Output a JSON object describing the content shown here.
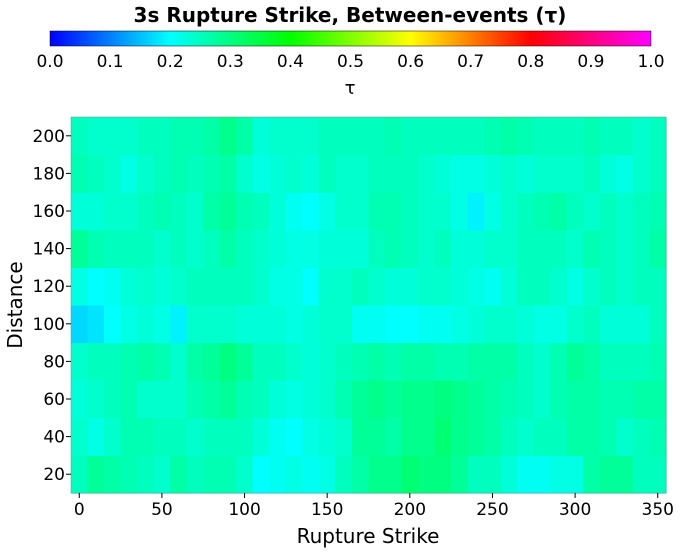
{
  "chart_data": {
    "type": "heatmap",
    "title": "3s Rupture Strike, Between-events (τ)",
    "xlabel": "Rupture Strike",
    "ylabel": "Distance",
    "colorbar": {
      "label": "τ",
      "min": 0.0,
      "max": 1.0,
      "ticks": [
        "0.0",
        "0.1",
        "0.2",
        "0.3",
        "0.4",
        "0.5",
        "0.6",
        "0.7",
        "0.8",
        "0.9",
        "1.0"
      ],
      "colors": [
        "#0000ff",
        "#00ffff",
        "#00ff00",
        "#ffff00",
        "#ff0000",
        "#ff00ff"
      ]
    },
    "x_range": [
      -5,
      355
    ],
    "y_range": [
      10,
      210
    ],
    "x_ticks": [
      "0",
      "50",
      "100",
      "150",
      "200",
      "250",
      "300",
      "350"
    ],
    "y_ticks": [
      "20",
      "40",
      "60",
      "80",
      "100",
      "120",
      "140",
      "160",
      "180",
      "200"
    ],
    "x_bin_centers": [
      0,
      10,
      20,
      30,
      40,
      50,
      60,
      70,
      80,
      90,
      100,
      110,
      120,
      130,
      140,
      150,
      160,
      170,
      180,
      190,
      200,
      210,
      220,
      230,
      240,
      250,
      260,
      270,
      280,
      290,
      300,
      310,
      320,
      330,
      340,
      350
    ],
    "y_bin_centers": [
      20,
      40,
      60,
      80,
      100,
      120,
      140,
      160,
      180,
      200
    ],
    "values": [
      [
        0.25,
        0.28,
        0.27,
        0.26,
        0.25,
        0.24,
        0.27,
        0.25,
        0.26,
        0.26,
        0.24,
        0.2,
        0.21,
        0.22,
        0.21,
        0.22,
        0.25,
        0.27,
        0.29,
        0.29,
        0.31,
        0.3,
        0.3,
        0.28,
        0.25,
        0.25,
        0.23,
        0.21,
        0.21,
        0.22,
        0.22,
        0.27,
        0.28,
        0.28,
        0.25,
        0.25
      ],
      [
        0.24,
        0.22,
        0.24,
        0.26,
        0.26,
        0.25,
        0.25,
        0.24,
        0.25,
        0.25,
        0.25,
        0.23,
        0.21,
        0.2,
        0.22,
        0.23,
        0.24,
        0.28,
        0.28,
        0.27,
        0.29,
        0.29,
        0.31,
        0.29,
        0.28,
        0.27,
        0.25,
        0.24,
        0.25,
        0.25,
        0.27,
        0.27,
        0.26,
        0.24,
        0.25,
        0.26
      ],
      [
        0.23,
        0.24,
        0.25,
        0.26,
        0.24,
        0.24,
        0.24,
        0.26,
        0.27,
        0.28,
        0.26,
        0.25,
        0.23,
        0.22,
        0.23,
        0.24,
        0.26,
        0.28,
        0.29,
        0.28,
        0.29,
        0.29,
        0.3,
        0.29,
        0.28,
        0.27,
        0.26,
        0.25,
        0.24,
        0.26,
        0.27,
        0.27,
        0.26,
        0.26,
        0.27,
        0.27
      ],
      [
        0.24,
        0.25,
        0.25,
        0.26,
        0.27,
        0.26,
        0.24,
        0.27,
        0.28,
        0.3,
        0.28,
        0.25,
        0.25,
        0.24,
        0.23,
        0.24,
        0.25,
        0.26,
        0.27,
        0.26,
        0.27,
        0.27,
        0.26,
        0.26,
        0.27,
        0.27,
        0.27,
        0.25,
        0.24,
        0.26,
        0.28,
        0.27,
        0.25,
        0.25,
        0.25,
        0.26
      ],
      [
        0.17,
        0.18,
        0.2,
        0.22,
        0.23,
        0.22,
        0.19,
        0.24,
        0.24,
        0.24,
        0.23,
        0.23,
        0.23,
        0.22,
        0.23,
        0.24,
        0.24,
        0.21,
        0.21,
        0.2,
        0.2,
        0.21,
        0.21,
        0.22,
        0.23,
        0.24,
        0.24,
        0.23,
        0.22,
        0.22,
        0.24,
        0.25,
        0.23,
        0.23,
        0.23,
        0.25
      ],
      [
        0.22,
        0.2,
        0.21,
        0.23,
        0.24,
        0.23,
        0.24,
        0.25,
        0.25,
        0.25,
        0.25,
        0.24,
        0.22,
        0.22,
        0.2,
        0.24,
        0.24,
        0.25,
        0.24,
        0.23,
        0.23,
        0.24,
        0.24,
        0.23,
        0.22,
        0.21,
        0.23,
        0.25,
        0.25,
        0.24,
        0.22,
        0.24,
        0.25,
        0.24,
        0.25,
        0.25
      ],
      [
        0.28,
        0.26,
        0.25,
        0.25,
        0.25,
        0.24,
        0.25,
        0.24,
        0.25,
        0.27,
        0.25,
        0.24,
        0.23,
        0.22,
        0.22,
        0.23,
        0.23,
        0.23,
        0.25,
        0.26,
        0.25,
        0.24,
        0.25,
        0.23,
        0.23,
        0.24,
        0.24,
        0.25,
        0.25,
        0.25,
        0.24,
        0.26,
        0.25,
        0.24,
        0.25,
        0.27
      ],
      [
        0.23,
        0.23,
        0.24,
        0.24,
        0.25,
        0.26,
        0.25,
        0.24,
        0.27,
        0.28,
        0.26,
        0.25,
        0.23,
        0.21,
        0.2,
        0.22,
        0.24,
        0.24,
        0.26,
        0.26,
        0.25,
        0.24,
        0.24,
        0.22,
        0.19,
        0.22,
        0.24,
        0.25,
        0.26,
        0.27,
        0.25,
        0.24,
        0.25,
        0.24,
        0.25,
        0.26
      ],
      [
        0.26,
        0.25,
        0.24,
        0.22,
        0.24,
        0.25,
        0.26,
        0.25,
        0.26,
        0.27,
        0.24,
        0.22,
        0.23,
        0.24,
        0.23,
        0.25,
        0.24,
        0.24,
        0.25,
        0.25,
        0.25,
        0.24,
        0.23,
        0.22,
        0.22,
        0.23,
        0.24,
        0.23,
        0.24,
        0.24,
        0.24,
        0.25,
        0.23,
        0.22,
        0.24,
        0.25
      ],
      [
        0.25,
        0.24,
        0.24,
        0.24,
        0.25,
        0.25,
        0.26,
        0.26,
        0.27,
        0.29,
        0.27,
        0.23,
        0.24,
        0.24,
        0.24,
        0.25,
        0.25,
        0.25,
        0.25,
        0.26,
        0.25,
        0.25,
        0.25,
        0.25,
        0.25,
        0.26,
        0.27,
        0.26,
        0.25,
        0.25,
        0.25,
        0.26,
        0.25,
        0.25,
        0.24,
        0.25
      ]
    ]
  }
}
